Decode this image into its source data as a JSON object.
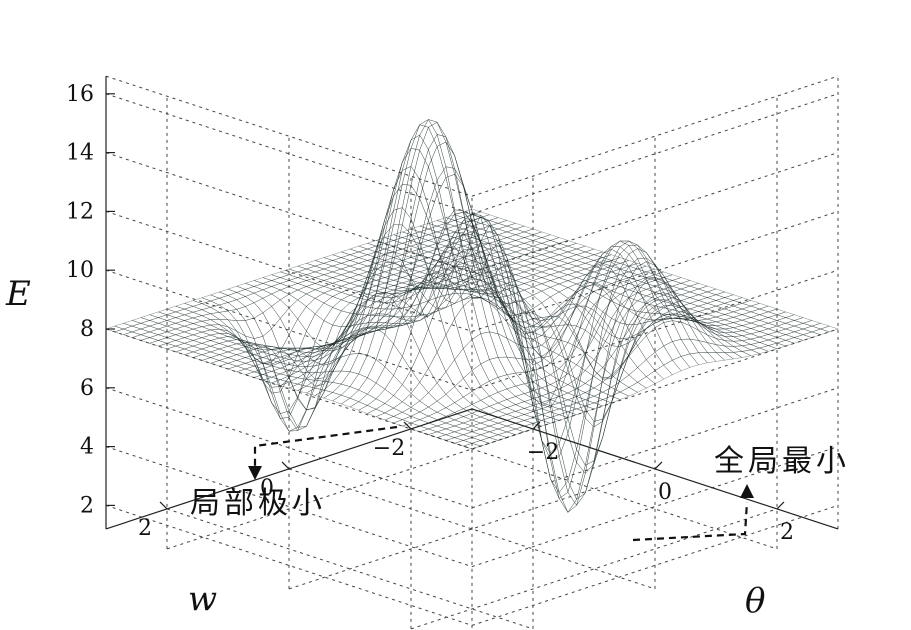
{
  "chart_data": {
    "type": "surface",
    "zlabel": "E",
    "xlabel": "w",
    "ylabel": "θ",
    "zlim": [
      1,
      16.5
    ],
    "xlim": [
      -3,
      3
    ],
    "ylim": [
      -3,
      3
    ],
    "z_ticks": [
      2,
      4,
      6,
      8,
      10,
      12,
      14,
      16
    ],
    "z_tick_labels": [
      "2",
      "4",
      "6",
      "8",
      "10",
      "12",
      "14",
      "16"
    ],
    "x_ticks": [
      2,
      0,
      -2
    ],
    "x_tick_labels": [
      "2",
      "0",
      "−2"
    ],
    "y_ticks": [
      -2,
      0,
      2
    ],
    "y_tick_labels": [
      "−2",
      "0",
      "2"
    ],
    "baseline": 8,
    "grid": true,
    "colormap": [
      "#2a1e8a",
      "#2f6fd6",
      "#37b3c9",
      "#6fcf8a",
      "#d7df3a",
      "#f0a23a",
      "#d9432b",
      "#8f1d1d"
    ],
    "annotations": [
      {
        "name": "local-min",
        "text": "局部极小",
        "at": {
          "w": 1.1,
          "theta": -1.6,
          "E": 4.3
        }
      },
      {
        "name": "global-min",
        "text": "全局最小",
        "at": {
          "w": -0.9,
          "theta": 0.6,
          "E": 1.3
        }
      }
    ]
  }
}
